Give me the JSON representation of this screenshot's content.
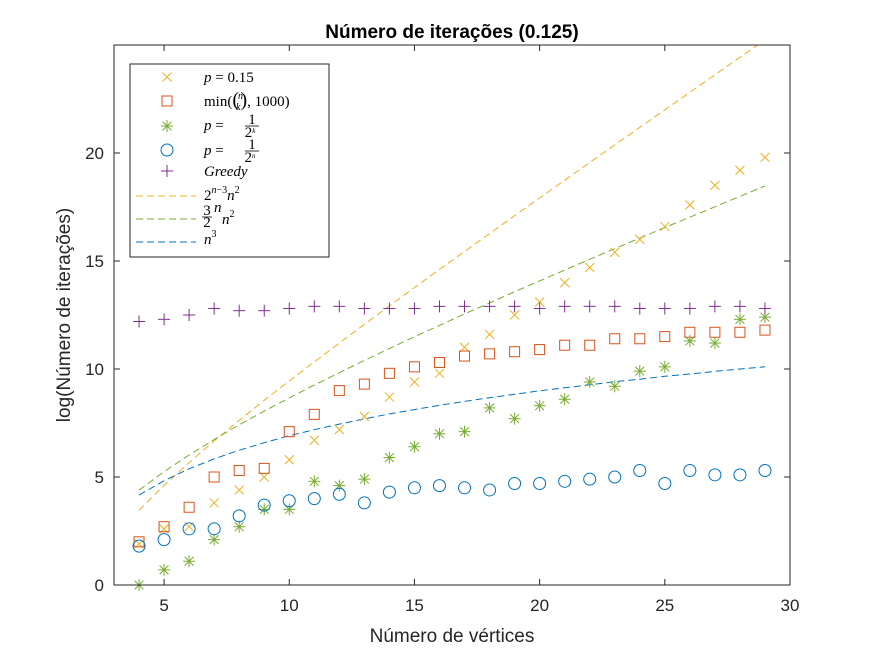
{
  "chart_data": {
    "type": "scatter",
    "title": "Número de iterações (0.125)",
    "xlabel": "Número de vértices",
    "ylabel": "log(Número de iterações)",
    "xlim": [
      3,
      30
    ],
    "ylim": [
      0,
      25
    ],
    "xticks": [
      "5",
      "10",
      "15",
      "20",
      "25",
      "30"
    ],
    "yticks": [
      "0",
      "5",
      "10",
      "15",
      "20"
    ],
    "grid": false,
    "legend_position": "top-left",
    "series": [
      {
        "name": "p = 0.15",
        "marker": "x",
        "color": "#EDB120",
        "x": [
          4,
          5,
          6,
          7,
          8,
          9,
          10,
          11,
          12,
          13,
          14,
          15,
          16,
          17,
          18,
          19,
          20,
          21,
          22,
          23,
          24,
          25,
          26,
          27,
          28,
          29
        ],
        "y": [
          1.9,
          2.6,
          2.7,
          3.8,
          4.4,
          5.0,
          5.8,
          6.7,
          7.2,
          7.8,
          8.7,
          9.4,
          9.8,
          11.0,
          11.6,
          12.5,
          13.1,
          14.0,
          14.7,
          15.4,
          16.0,
          16.6,
          17.6,
          18.5,
          19.2,
          19.8
        ]
      },
      {
        "name": "min(C(n,k), 1000)",
        "marker": "square",
        "color": "#D95319",
        "x": [
          4,
          5,
          6,
          7,
          8,
          9,
          10,
          11,
          12,
          13,
          14,
          15,
          16,
          17,
          18,
          19,
          20,
          21,
          22,
          23,
          24,
          25,
          26,
          27,
          28,
          29
        ],
        "y": [
          2.0,
          2.7,
          3.6,
          5.0,
          5.3,
          5.4,
          7.1,
          7.9,
          9.0,
          9.3,
          9.8,
          10.1,
          10.3,
          10.6,
          10.7,
          10.8,
          10.9,
          11.1,
          11.1,
          11.4,
          11.4,
          11.5,
          11.7,
          11.7,
          11.7,
          11.8
        ]
      },
      {
        "name": "p = 1/2^k",
        "marker": "asterisk",
        "color": "#77AC30",
        "x": [
          4,
          5,
          6,
          7,
          8,
          9,
          10,
          11,
          12,
          13,
          14,
          15,
          16,
          17,
          18,
          19,
          20,
          21,
          22,
          23,
          24,
          25,
          26,
          27,
          28,
          29
        ],
        "y": [
          0.0,
          0.7,
          1.1,
          2.1,
          2.7,
          3.5,
          3.5,
          4.8,
          4.6,
          4.9,
          5.9,
          6.4,
          7.0,
          7.1,
          8.2,
          7.7,
          8.3,
          8.6,
          9.4,
          9.2,
          9.9,
          10.1,
          11.3,
          11.2,
          12.3,
          12.4
        ]
      },
      {
        "name": "p = 1/2^n",
        "marker": "circle",
        "color": "#0072BD",
        "x": [
          4,
          5,
          6,
          7,
          8,
          9,
          10,
          11,
          12,
          13,
          14,
          15,
          16,
          17,
          18,
          19,
          20,
          21,
          22,
          23,
          24,
          25,
          26,
          27,
          28,
          29
        ],
        "y": [
          1.8,
          2.1,
          2.6,
          2.6,
          3.2,
          3.7,
          3.9,
          4.0,
          4.2,
          3.8,
          4.3,
          4.5,
          4.6,
          4.5,
          4.4,
          4.7,
          4.7,
          4.8,
          4.9,
          5.0,
          5.3,
          4.7,
          5.3,
          5.1,
          5.1,
          5.3
        ]
      },
      {
        "name": "Greedy",
        "marker": "plus",
        "color": "#7E2F8E",
        "x": [
          4,
          5,
          6,
          7,
          8,
          9,
          10,
          11,
          12,
          13,
          14,
          15,
          16,
          17,
          18,
          19,
          20,
          21,
          22,
          23,
          24,
          25,
          26,
          27,
          28,
          29
        ],
        "y": [
          12.2,
          12.3,
          12.5,
          12.8,
          12.7,
          12.7,
          12.8,
          12.9,
          12.9,
          12.8,
          12.8,
          12.8,
          12.9,
          12.9,
          12.9,
          12.9,
          12.8,
          12.9,
          12.9,
          12.9,
          12.8,
          12.8,
          12.8,
          12.9,
          12.9,
          12.8
        ]
      },
      {
        "name": "2^(n-3) n^2",
        "marker": "dashed-line",
        "color": "#EDB120",
        "x": [
          4,
          5,
          6,
          7,
          8,
          9,
          10,
          11,
          12,
          13,
          14,
          15,
          16,
          17,
          18,
          19,
          20,
          21,
          22,
          23,
          24,
          25,
          26,
          27,
          28,
          29
        ],
        "y": [
          3.46,
          4.61,
          5.66,
          6.67,
          7.62,
          8.55,
          9.45,
          10.33,
          11.2,
          12.07,
          12.92,
          13.77,
          14.61,
          15.44,
          16.27,
          17.1,
          17.92,
          18.74,
          19.56,
          20.37,
          21.19,
          22.0,
          22.81,
          23.62,
          24.43,
          25.24
        ]
      },
      {
        "name": "(3/2)^n n^2",
        "marker": "dashed-line",
        "color": "#77AC30",
        "x": [
          4,
          5,
          6,
          7,
          8,
          9,
          10,
          11,
          12,
          13,
          14,
          15,
          16,
          17,
          18,
          19,
          20,
          21,
          22,
          23,
          24,
          25,
          26,
          27,
          28,
          29
        ],
        "y": [
          4.39,
          5.25,
          6.02,
          6.73,
          7.42,
          8.05,
          8.66,
          9.26,
          9.83,
          10.4,
          10.95,
          11.49,
          12.02,
          12.55,
          13.06,
          13.58,
          14.08,
          14.58,
          15.08,
          15.57,
          16.06,
          16.55,
          17.03,
          17.51,
          17.99,
          18.47
        ]
      },
      {
        "name": "n^3",
        "marker": "dashed-line",
        "color": "#0072BD",
        "x": [
          4,
          5,
          6,
          7,
          8,
          9,
          10,
          11,
          12,
          13,
          14,
          15,
          16,
          17,
          18,
          19,
          20,
          21,
          22,
          23,
          24,
          25,
          26,
          27,
          28,
          29
        ],
        "y": [
          4.16,
          4.83,
          5.38,
          5.84,
          6.24,
          6.59,
          6.91,
          7.19,
          7.45,
          7.69,
          7.92,
          8.12,
          8.32,
          8.5,
          8.67,
          8.83,
          8.99,
          9.13,
          9.27,
          9.41,
          9.53,
          9.66,
          9.77,
          9.89,
          10.0,
          10.1
        ]
      }
    ]
  }
}
